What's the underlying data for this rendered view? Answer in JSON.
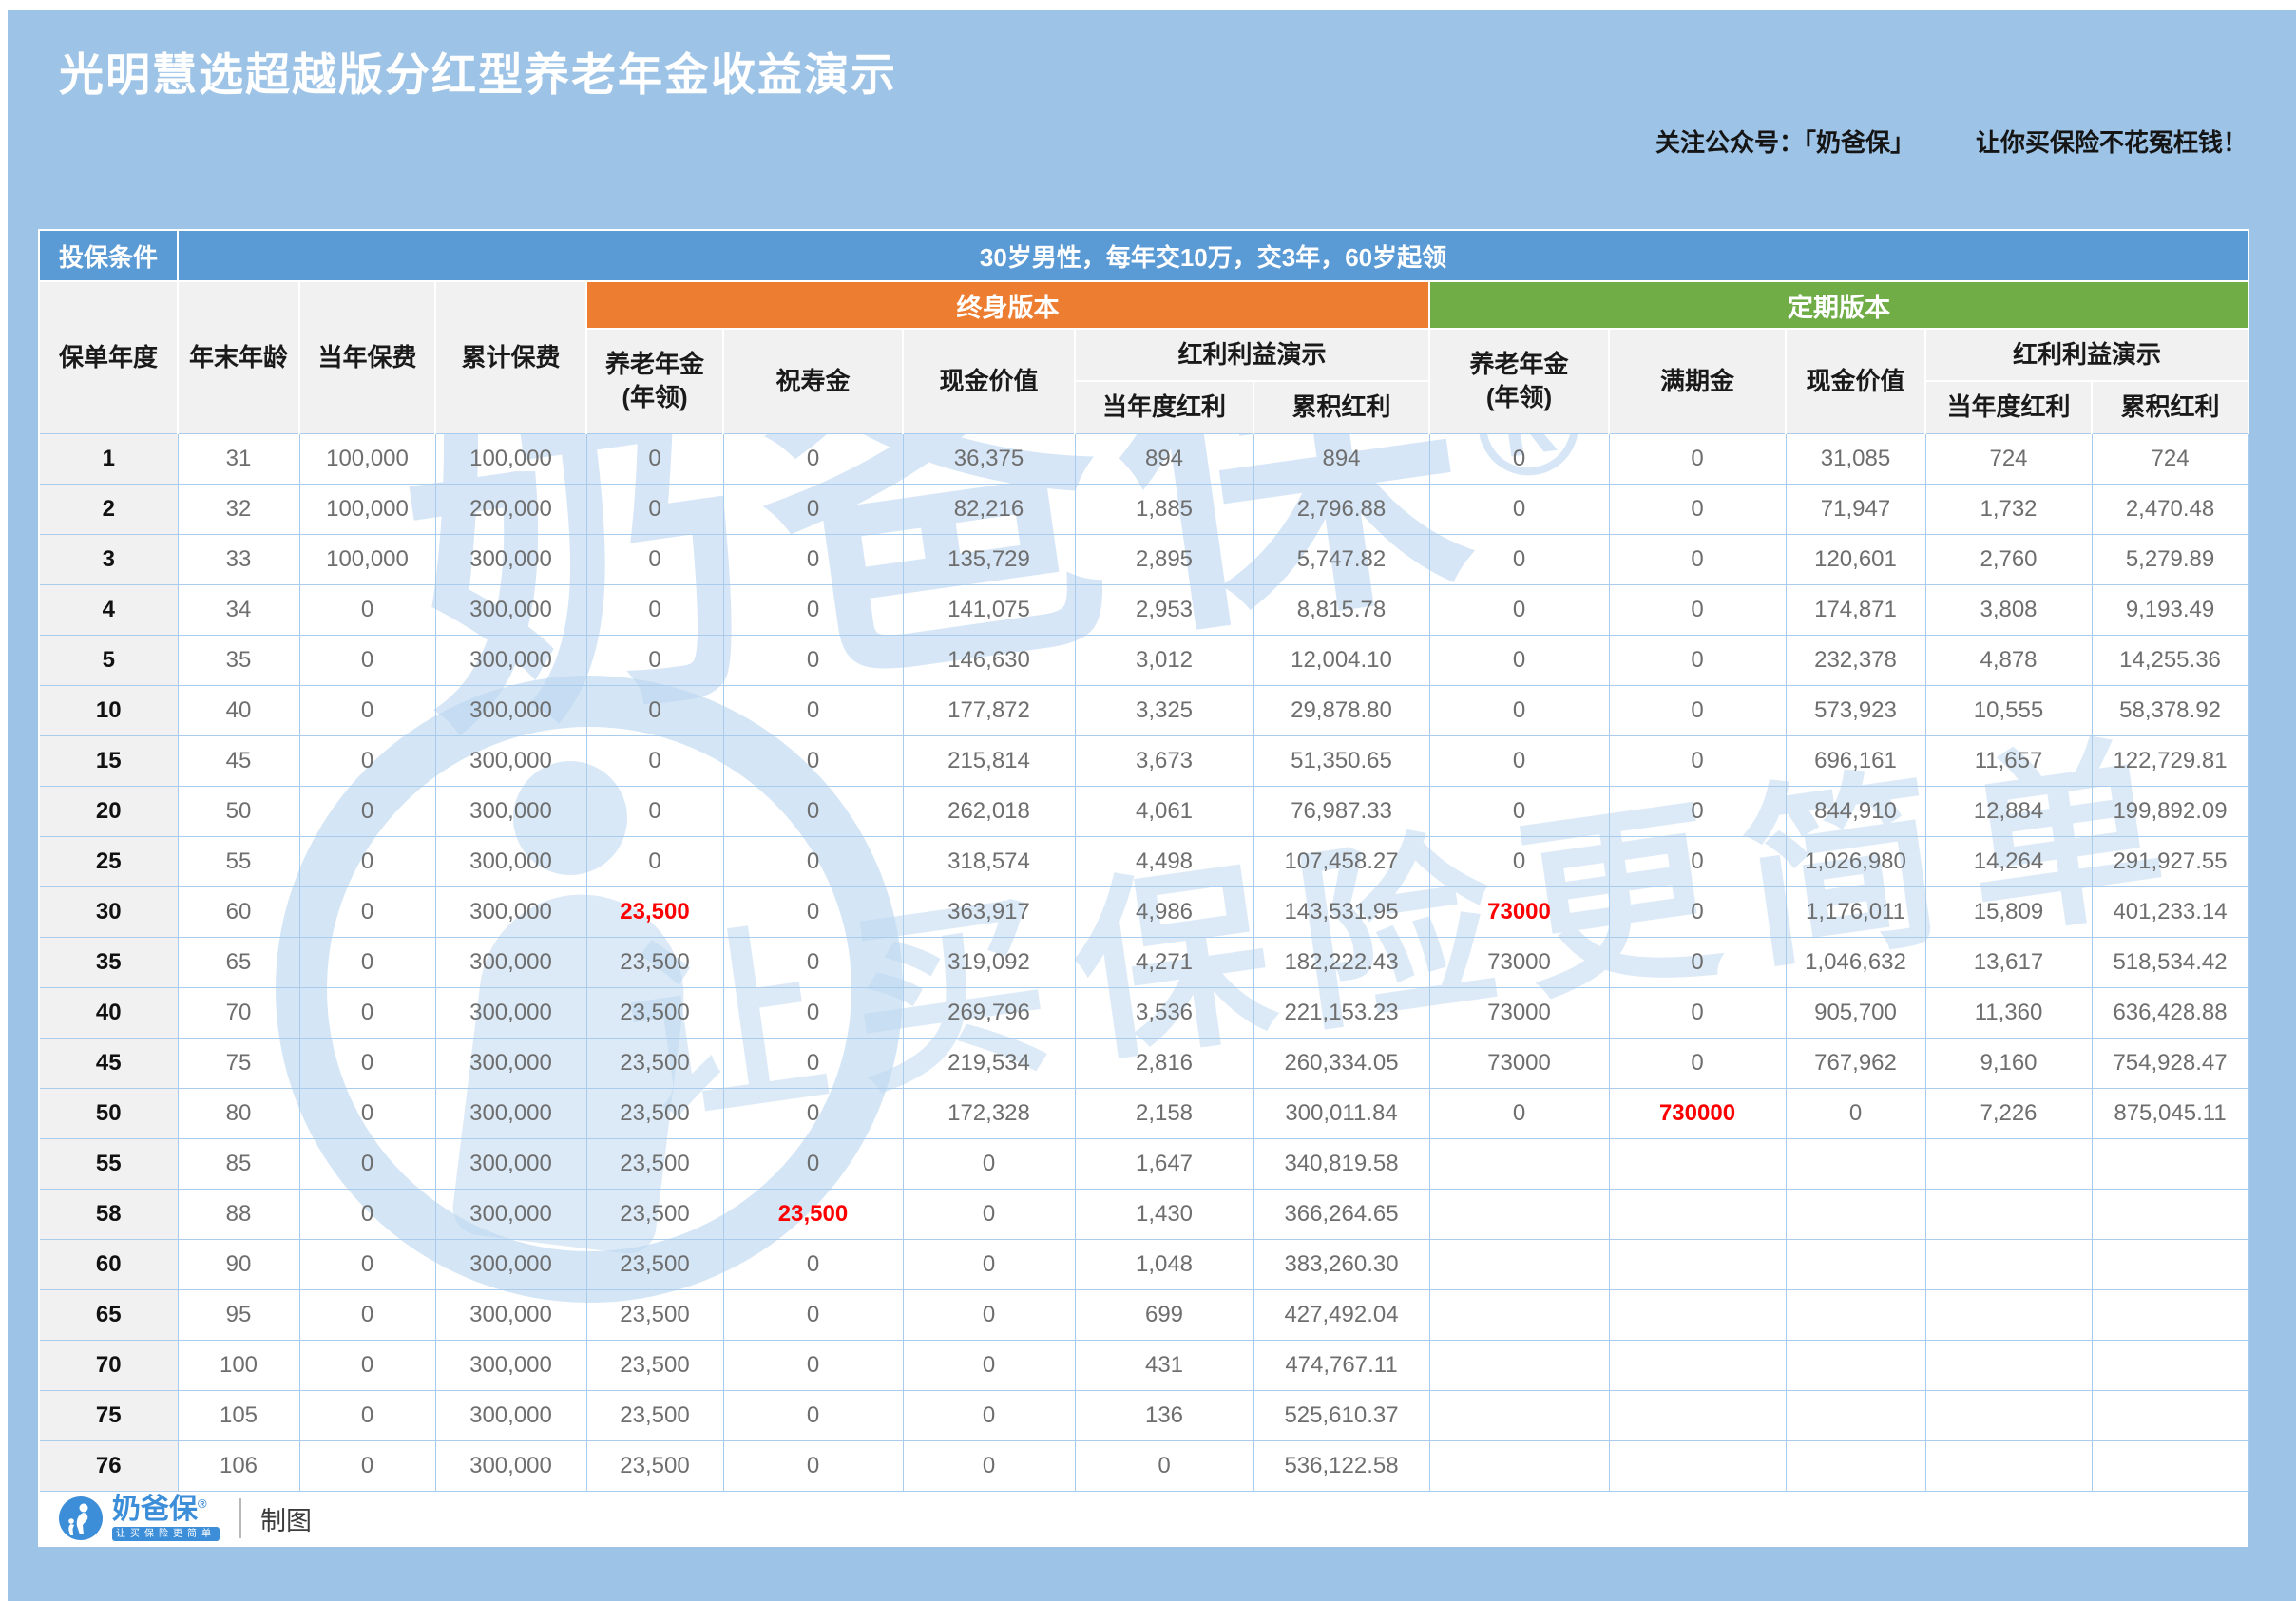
{
  "title": "光明慧选超越版分红型养老年金收益演示",
  "follow_note": {
    "left": "关注公众号：「奶爸保」",
    "right": "让你买保险不花冤枉钱！"
  },
  "colors": {
    "page_bg": "#9DC3E6",
    "band_blue": "#5B9BD5",
    "header_gray": "#F1F1F1",
    "lifetime_orange": "#ED7D31",
    "term_green": "#70AD47",
    "red": "#FF0000",
    "brand_blue": "#3D8ED9"
  },
  "chart_data": {
    "type": "table",
    "title": "光明慧选超越版分红型养老年金收益演示",
    "condition": {
      "label": "投保条件",
      "value": "30岁男性，每年交10万，交3年，60岁起领"
    },
    "base_headers": [
      "保单年度",
      "年末年龄",
      "当年保费",
      "累计保费"
    ],
    "groups": [
      {
        "name": "终身版本",
        "color": "#ED7D31",
        "headers": [
          "养老年金\n(年领)",
          "祝寿金",
          "现金价值"
        ],
        "dividend_group": "红利利益演示",
        "dividend_headers": [
          "当年度红利",
          "累积红利"
        ]
      },
      {
        "name": "定期版本",
        "color": "#70AD47",
        "headers": [
          "养老年金\n(年领)",
          "满期金",
          "现金价值"
        ],
        "dividend_group": "红利利益演示",
        "dividend_headers": [
          "当年度红利",
          "累积红利"
        ]
      }
    ],
    "rows": [
      {
        "cells": [
          "1",
          "31",
          "100,000",
          "100,000",
          "0",
          "0",
          "36,375",
          "894",
          "894",
          "0",
          "0",
          "31,085",
          "724",
          "724"
        ],
        "red": []
      },
      {
        "cells": [
          "2",
          "32",
          "100,000",
          "200,000",
          "0",
          "0",
          "82,216",
          "1,885",
          "2,796.88",
          "0",
          "0",
          "71,947",
          "1,732",
          "2,470.48"
        ],
        "red": []
      },
      {
        "cells": [
          "3",
          "33",
          "100,000",
          "300,000",
          "0",
          "0",
          "135,729",
          "2,895",
          "5,747.82",
          "0",
          "0",
          "120,601",
          "2,760",
          "5,279.89"
        ],
        "red": []
      },
      {
        "cells": [
          "4",
          "34",
          "0",
          "300,000",
          "0",
          "0",
          "141,075",
          "2,953",
          "8,815.78",
          "0",
          "0",
          "174,871",
          "3,808",
          "9,193.49"
        ],
        "red": []
      },
      {
        "cells": [
          "5",
          "35",
          "0",
          "300,000",
          "0",
          "0",
          "146,630",
          "3,012",
          "12,004.10",
          "0",
          "0",
          "232,378",
          "4,878",
          "14,255.36"
        ],
        "red": []
      },
      {
        "cells": [
          "10",
          "40",
          "0",
          "300,000",
          "0",
          "0",
          "177,872",
          "3,325",
          "29,878.80",
          "0",
          "0",
          "573,923",
          "10,555",
          "58,378.92"
        ],
        "red": []
      },
      {
        "cells": [
          "15",
          "45",
          "0",
          "300,000",
          "0",
          "0",
          "215,814",
          "3,673",
          "51,350.65",
          "0",
          "0",
          "696,161",
          "11,657",
          "122,729.81"
        ],
        "red": []
      },
      {
        "cells": [
          "20",
          "50",
          "0",
          "300,000",
          "0",
          "0",
          "262,018",
          "4,061",
          "76,987.33",
          "0",
          "0",
          "844,910",
          "12,884",
          "199,892.09"
        ],
        "red": []
      },
      {
        "cells": [
          "25",
          "55",
          "0",
          "300,000",
          "0",
          "0",
          "318,574",
          "4,498",
          "107,458.27",
          "0",
          "0",
          "1,026,980",
          "14,264",
          "291,927.55"
        ],
        "red": []
      },
      {
        "cells": [
          "30",
          "60",
          "0",
          "300,000",
          "23,500",
          "0",
          "363,917",
          "4,986",
          "143,531.95",
          "73000",
          "0",
          "1,176,011",
          "15,809",
          "401,233.14"
        ],
        "red": [
          4,
          9
        ]
      },
      {
        "cells": [
          "35",
          "65",
          "0",
          "300,000",
          "23,500",
          "0",
          "319,092",
          "4,271",
          "182,222.43",
          "73000",
          "0",
          "1,046,632",
          "13,617",
          "518,534.42"
        ],
        "red": []
      },
      {
        "cells": [
          "40",
          "70",
          "0",
          "300,000",
          "23,500",
          "0",
          "269,796",
          "3,536",
          "221,153.23",
          "73000",
          "0",
          "905,700",
          "11,360",
          "636,428.88"
        ],
        "red": []
      },
      {
        "cells": [
          "45",
          "75",
          "0",
          "300,000",
          "23,500",
          "0",
          "219,534",
          "2,816",
          "260,334.05",
          "73000",
          "0",
          "767,962",
          "9,160",
          "754,928.47"
        ],
        "red": []
      },
      {
        "cells": [
          "50",
          "80",
          "0",
          "300,000",
          "23,500",
          "0",
          "172,328",
          "2,158",
          "300,011.84",
          "0",
          "730000",
          "0",
          "7,226",
          "875,045.11"
        ],
        "red": [
          10
        ]
      },
      {
        "cells": [
          "55",
          "85",
          "0",
          "300,000",
          "23,500",
          "0",
          "0",
          "1,647",
          "340,819.58",
          "",
          "",
          "",
          "",
          ""
        ],
        "red": []
      },
      {
        "cells": [
          "58",
          "88",
          "0",
          "300,000",
          "23,500",
          "23,500",
          "0",
          "1,430",
          "366,264.65",
          "",
          "",
          "",
          "",
          ""
        ],
        "red": [
          5
        ]
      },
      {
        "cells": [
          "60",
          "90",
          "0",
          "300,000",
          "23,500",
          "0",
          "0",
          "1,048",
          "383,260.30",
          "",
          "",
          "",
          "",
          ""
        ],
        "red": []
      },
      {
        "cells": [
          "65",
          "95",
          "0",
          "300,000",
          "23,500",
          "0",
          "0",
          "699",
          "427,492.04",
          "",
          "",
          "",
          "",
          ""
        ],
        "red": []
      },
      {
        "cells": [
          "70",
          "100",
          "0",
          "300,000",
          "23,500",
          "0",
          "0",
          "431",
          "474,767.11",
          "",
          "",
          "",
          "",
          ""
        ],
        "red": []
      },
      {
        "cells": [
          "75",
          "105",
          "0",
          "300,000",
          "23,500",
          "0",
          "0",
          "136",
          "525,610.37",
          "",
          "",
          "",
          "",
          ""
        ],
        "red": []
      },
      {
        "cells": [
          "76",
          "106",
          "0",
          "300,000",
          "23,500",
          "0",
          "0",
          "0",
          "536,122.58",
          "",
          "",
          "",
          "",
          ""
        ],
        "red": []
      }
    ]
  },
  "watermark": {
    "brand": "奶爸保",
    "reg": "®",
    "tagline": "让买保险更简单"
  },
  "footer": {
    "brand": "奶爸保",
    "reg": "®",
    "tagline": "让买保险更简单",
    "credit": "制图"
  }
}
